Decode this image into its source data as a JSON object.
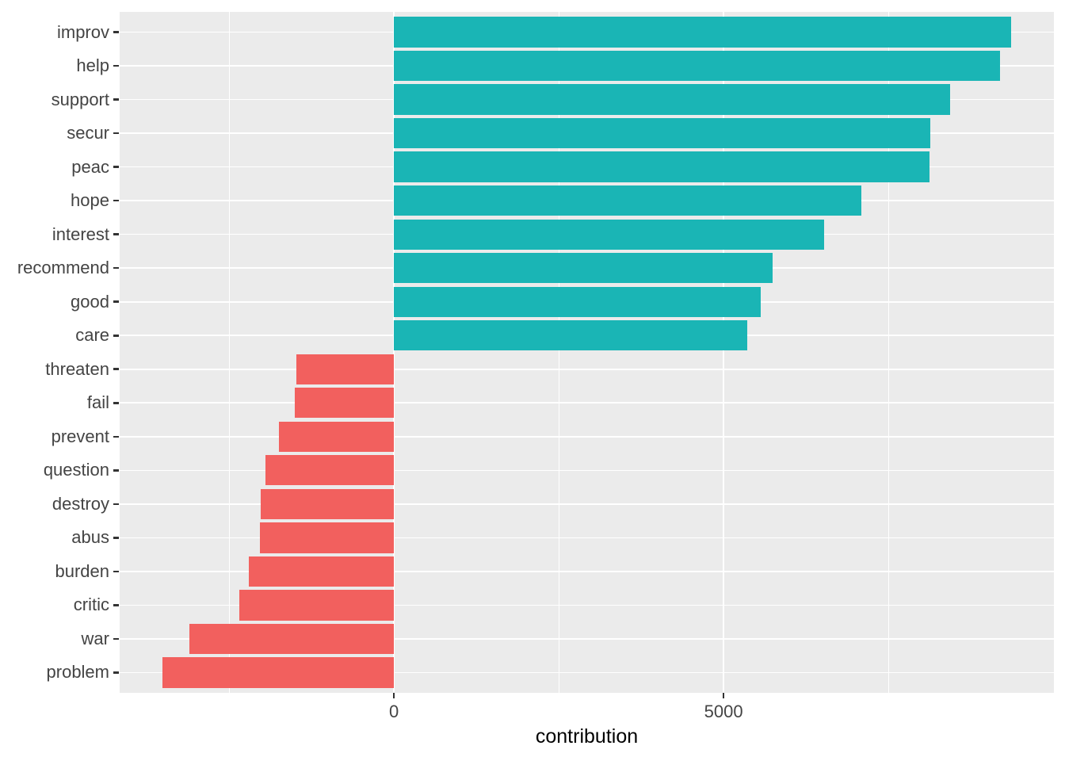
{
  "chart_data": {
    "type": "bar",
    "orientation": "horizontal",
    "title": "",
    "xlabel": "contribution",
    "ylabel": "",
    "categories": [
      "improv",
      "help",
      "support",
      "secur",
      "peac",
      "hope",
      "interest",
      "recommend",
      "good",
      "care",
      "threaten",
      "fail",
      "prevent",
      "question",
      "destroy",
      "abus",
      "burden",
      "critic",
      "war",
      "problem"
    ],
    "values": [
      9360,
      9195,
      8440,
      8140,
      8125,
      7090,
      6525,
      5745,
      5565,
      5360,
      -1480,
      -1500,
      -1740,
      -1950,
      -2020,
      -2030,
      -2200,
      -2345,
      -3100,
      -3510
    ],
    "xlim": [
      -4160,
      10010
    ],
    "x_ticks": [
      0,
      5000
    ],
    "x_tick_labels": [
      "0",
      "5000"
    ],
    "x_minor_ticks": [
      -2500,
      2500,
      7500
    ],
    "grid": "on",
    "legend": "none",
    "bar_width_fraction": 0.9,
    "colors": {
      "positive_bar": "#1AB5B5",
      "negative_bar": "#F2605E",
      "panel_background": "#EBEBEB",
      "gridline": "#FFFFFF",
      "tick_mark": "#333333",
      "tick_label_text": "#444444",
      "axis_title_text": "#000000"
    }
  }
}
